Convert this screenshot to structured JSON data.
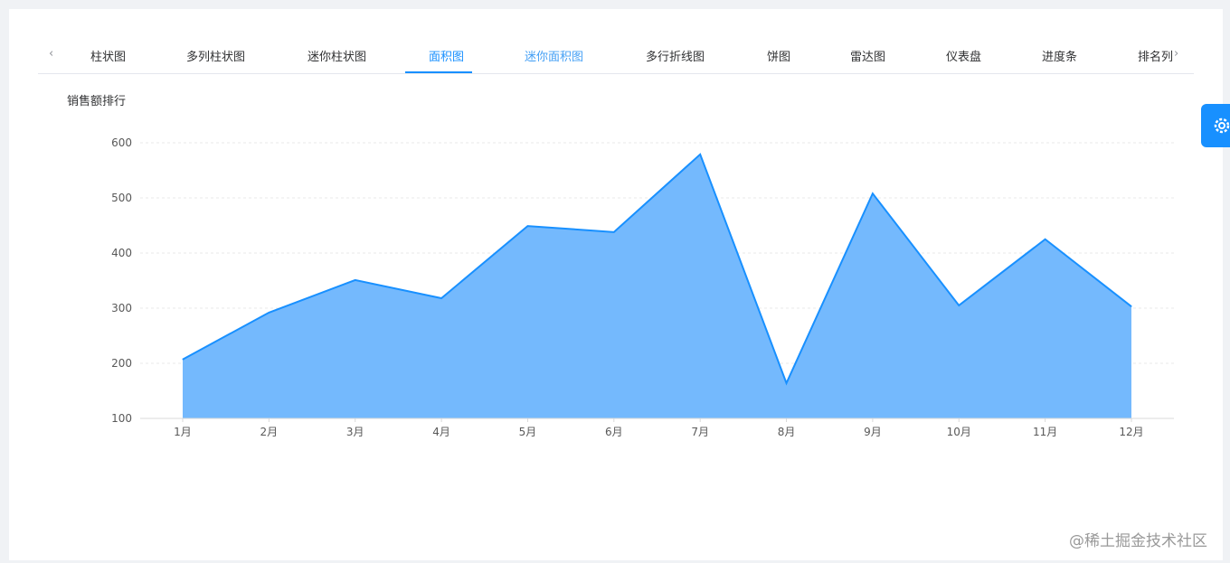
{
  "tabs": [
    "柱状图",
    "多列柱状图",
    "迷你柱状图",
    "面积图",
    "迷你面积图",
    "多行折线图",
    "饼图",
    "雷达图",
    "仪表盘",
    "进度条",
    "排名列"
  ],
  "active_tab": 3,
  "watermark": "@稀土掘金技术社区",
  "colors": {
    "accent": "#1890ff",
    "area": "#74b9fd"
  },
  "chart_data": {
    "type": "area",
    "title": "销售额排行",
    "categories": [
      "1月",
      "2月",
      "3月",
      "4月",
      "5月",
      "6月",
      "7月",
      "8月",
      "9月",
      "10月",
      "11月",
      "12月"
    ],
    "values": [
      207,
      292,
      351,
      318,
      449,
      438,
      579,
      164,
      508,
      305,
      425,
      303
    ],
    "ylim": [
      100,
      600
    ],
    "yticks": [
      100,
      200,
      300,
      400,
      500,
      600
    ],
    "grid": true
  }
}
